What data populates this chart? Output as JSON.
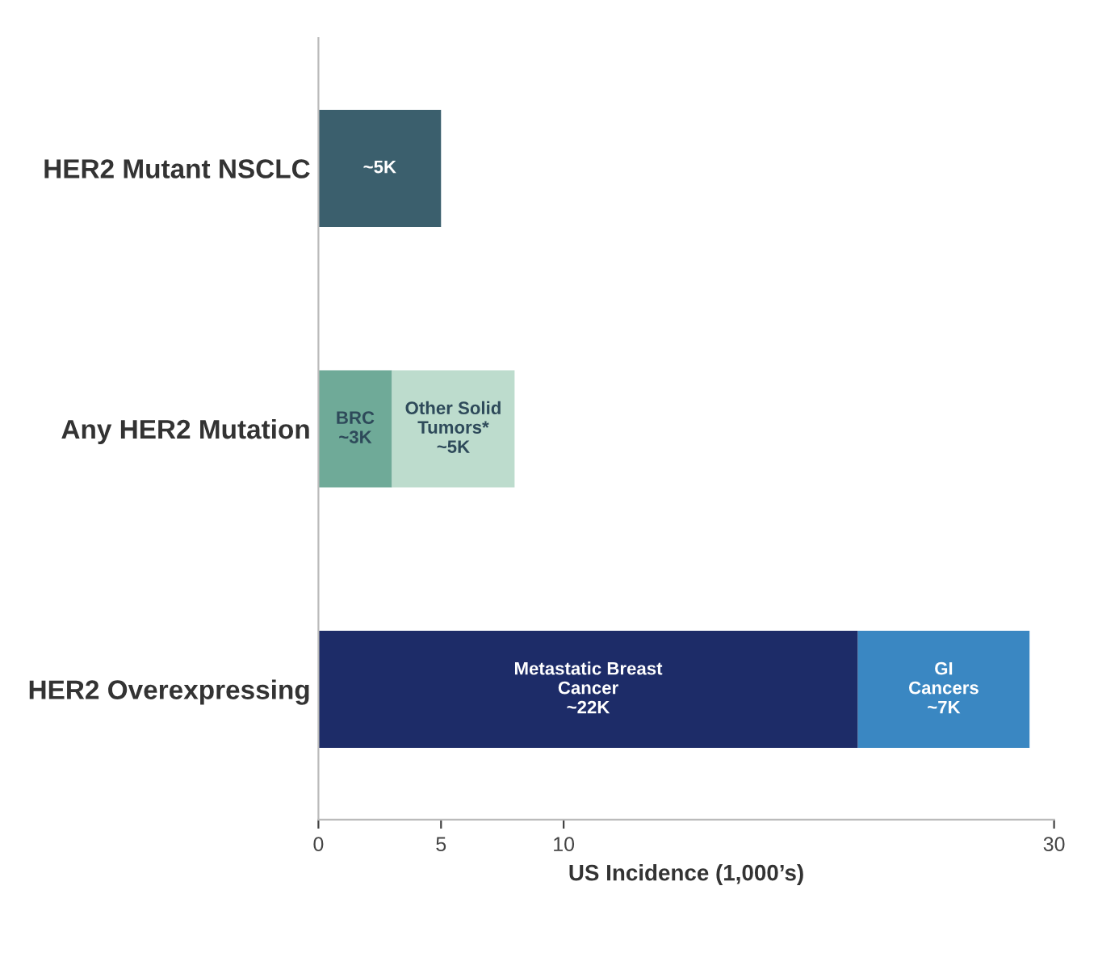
{
  "chart_data": {
    "type": "bar",
    "orientation": "horizontal",
    "stacked": true,
    "categories": [
      "HER2 Mutant NSCLC",
      "Any HER2 Mutation",
      "HER2 Overexpressing"
    ],
    "series": [
      {
        "colors": [
          "#3b5f6d",
          "#6faa98",
          "#1d2c68"
        ],
        "values": [
          5,
          3,
          22
        ],
        "value_labels": [
          "~5K",
          "BRC\n~3K",
          "Metastatic Breast\nCancer\n~22K"
        ]
      },
      {
        "colors": [
          null,
          "#bddccd",
          "#3a87c2"
        ],
        "values": [
          null,
          5,
          7
        ],
        "value_labels": [
          null,
          "Other Solid\nTumors*\n~5K",
          "GI\nCancers\n~7K"
        ]
      }
    ],
    "xlabel": "US Incidence (1,000’s)",
    "xlim": [
      0,
      30
    ],
    "xticks": [
      0,
      5,
      10,
      30
    ],
    "grid": false
  }
}
